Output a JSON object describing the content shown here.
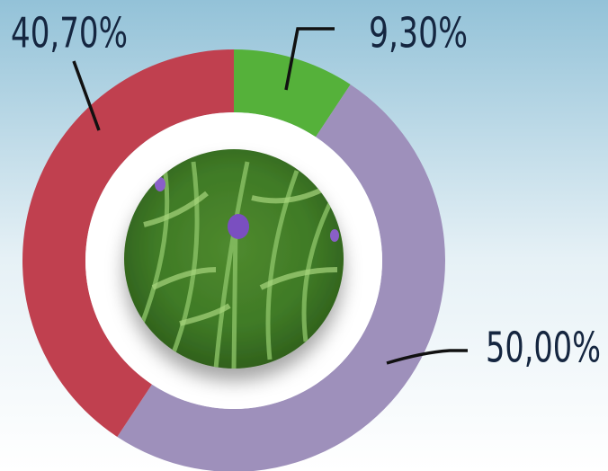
{
  "chart_data": {
    "type": "donut",
    "values": [
      9.3,
      50.0,
      40.7
    ],
    "value_labels": [
      "9,30%",
      "50,00%",
      "40,70%"
    ],
    "colors": [
      "#55b13a",
      "#9e90bb",
      "#c0404f"
    ]
  }
}
